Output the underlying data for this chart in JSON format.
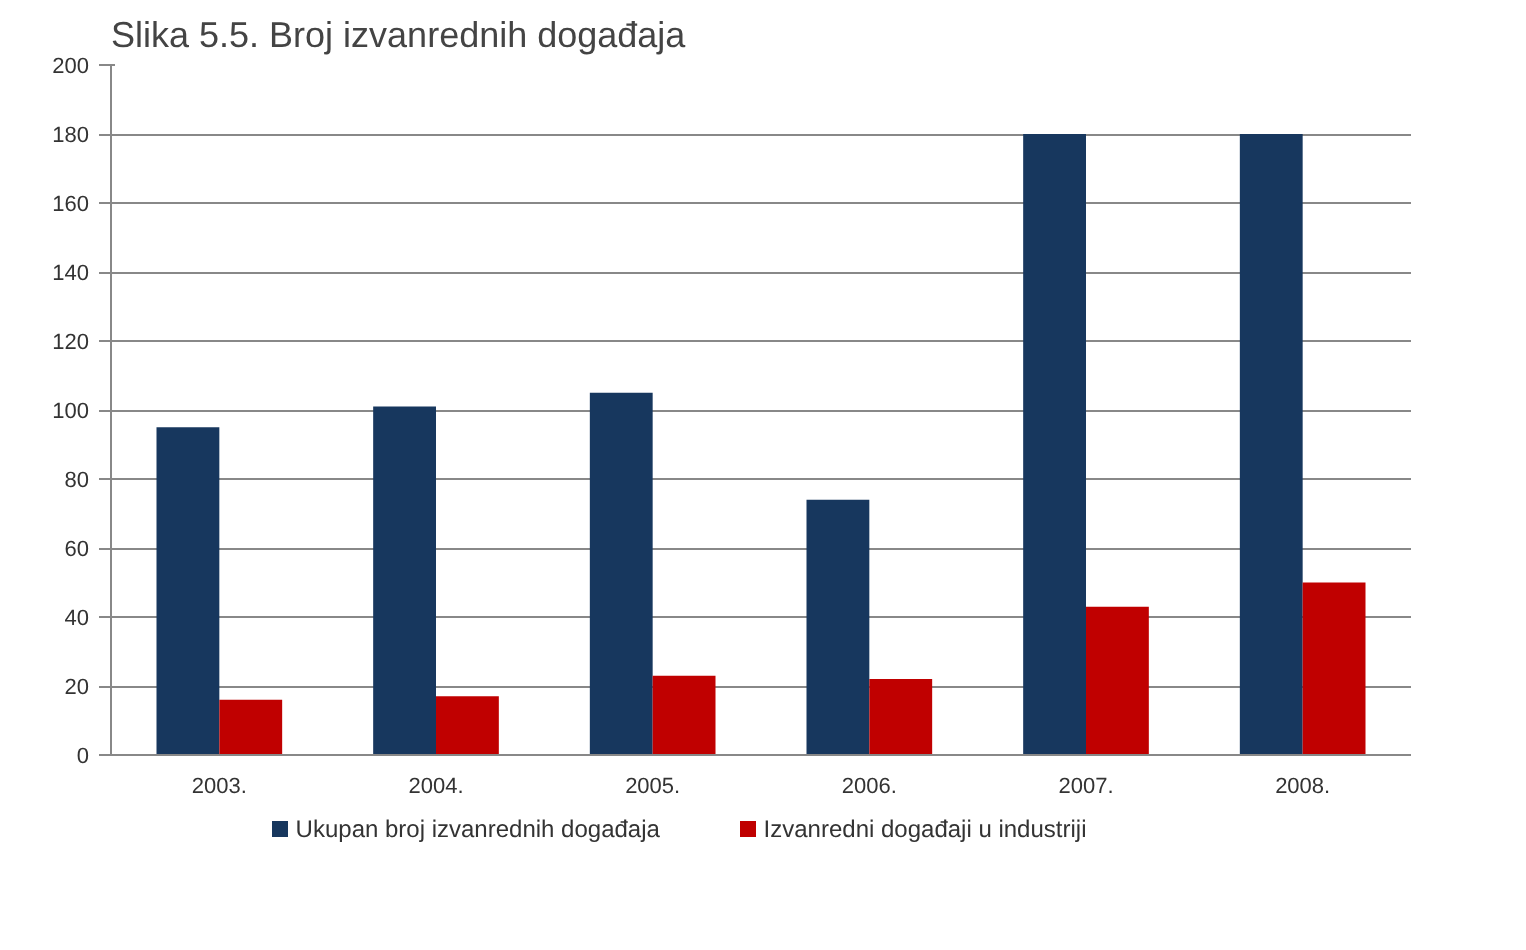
{
  "chart_data": {
    "type": "bar",
    "title": "Slika 5.5. Broj izvanrednih događaja",
    "categories": [
      "2003.",
      "2004.",
      "2005.",
      "2006.",
      "2007.",
      "2008."
    ],
    "series": [
      {
        "name": "Ukupan broj izvanrednih događaja",
        "color": "#17375e",
        "values": [
          95,
          101,
          105,
          74,
          180,
          180
        ]
      },
      {
        "name": "Izvanredni događaji  u industriji",
        "color": "#c00000",
        "values": [
          16,
          17,
          23,
          22,
          43,
          50
        ]
      }
    ],
    "ylim": [
      0,
      200
    ],
    "yticks": [
      0,
      20,
      40,
      60,
      80,
      100,
      120,
      140,
      160,
      180,
      200
    ],
    "grid": "y",
    "legend": "bottom"
  }
}
